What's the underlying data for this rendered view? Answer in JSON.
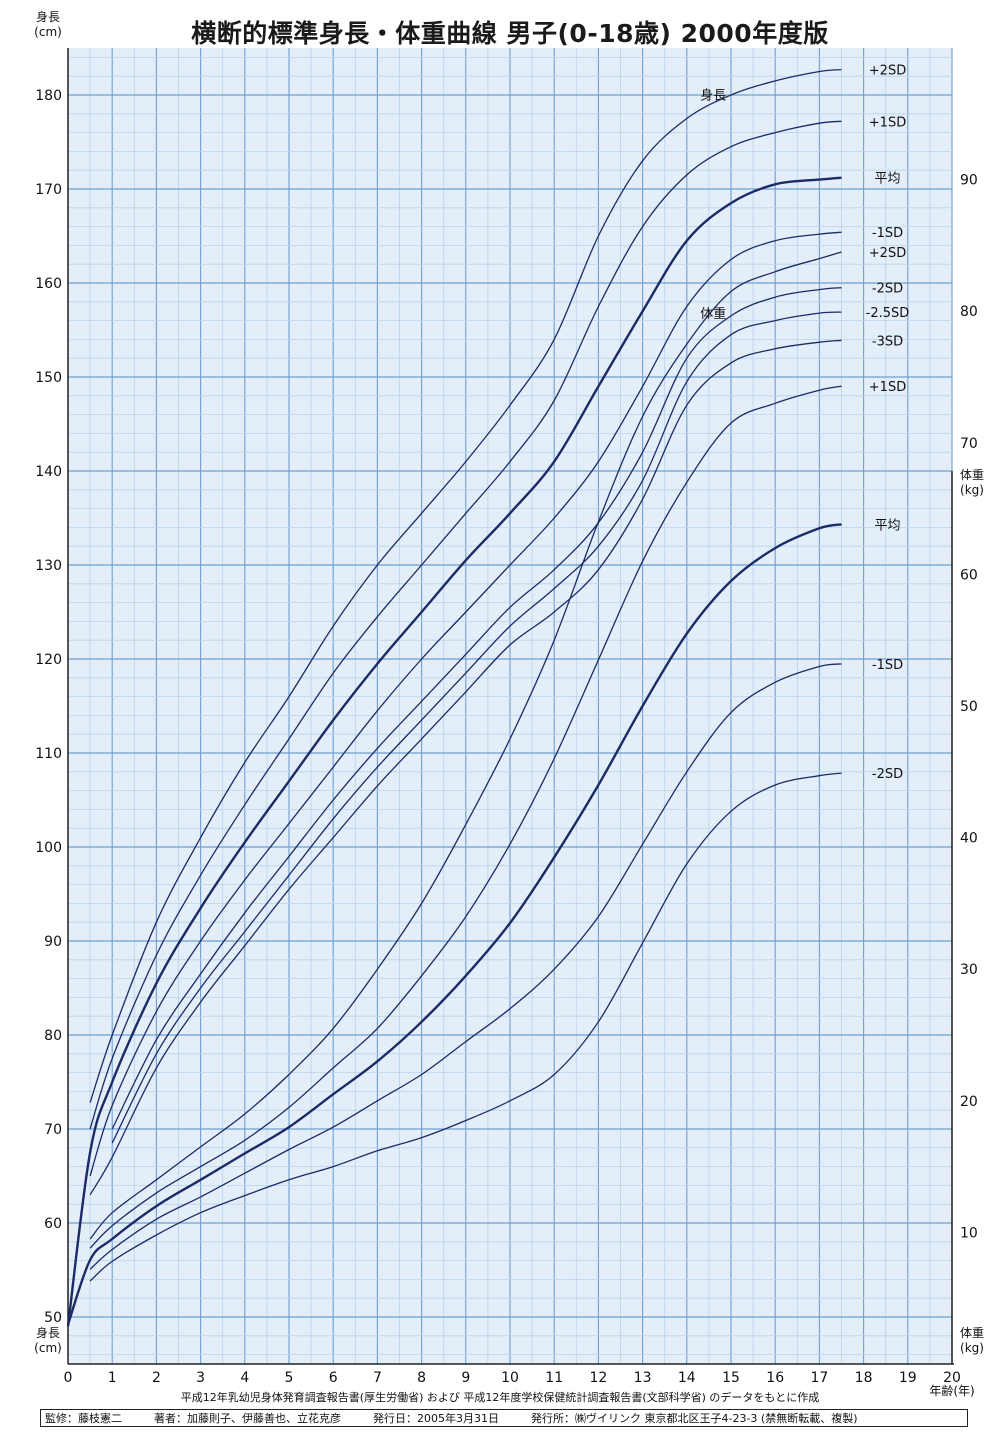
{
  "title": "横断的標準身長・体重曲線 男子(0-18歳) 2000年度版",
  "axes": {
    "y_left_label_top": [
      "身長",
      "(cm)"
    ],
    "y_left_label_bottom": [
      "身長",
      "(cm)"
    ],
    "y_right_label_top": [
      "体重",
      "(kg)"
    ],
    "y_right_label_bottom": [
      "体重",
      "(kg)"
    ],
    "x_label": "年齢(年)"
  },
  "footer": {
    "source": "平成12年乳幼児身体発育調査報告書(厚生労働省) および 平成12年度学校保健統計調査報告書(文部科学省) のデータをもとに作成",
    "credits": [
      "監修：藤枝憲二",
      "著者：加藤則子、伊藤善也、立花克彦",
      "発行日：2005年3月31日",
      "発行所：㈱ヴイリンク 東京都北区王子4-23-3 (禁無断転載、複製)"
    ]
  },
  "chart_data": {
    "type": "line",
    "title": "横断的標準身長・体重曲線 男子(0-18歳) 2000年度版",
    "xlabel": "年齢(年)",
    "ylabel": "身長 (cm)",
    "ylabel_right": "体重 (kg)",
    "xlim": [
      0,
      20
    ],
    "ylim_height": [
      45,
      185
    ],
    "ylim_weight": [
      0,
      100
    ],
    "x_ticks": [
      0,
      1,
      2,
      3,
      4,
      5,
      6,
      7,
      8,
      9,
      10,
      11,
      12,
      13,
      14,
      15,
      16,
      17,
      18,
      19,
      20
    ],
    "height_ticks": [
      50,
      60,
      70,
      80,
      90,
      100,
      110,
      120,
      130,
      140,
      150,
      160,
      170,
      180
    ],
    "weight_ticks": [
      10,
      20,
      30,
      40,
      50,
      60,
      70,
      80,
      90
    ],
    "grid": true,
    "height_group_label": "身長",
    "weight_group_label": "体重",
    "colors": {
      "grid_major": "#6f9fd0",
      "grid_minor": "#b9d3ec",
      "curve": "#1c2a66",
      "axis": "#222222"
    },
    "height_series": [
      {
        "name": "+2SD",
        "x": [
          0.5,
          1,
          2,
          3,
          4,
          5,
          6,
          7,
          8,
          9,
          10,
          11,
          12,
          13,
          14,
          15,
          16,
          17,
          17.5
        ],
        "values": [
          72.8,
          80,
          92,
          101,
          109,
          116,
          123.5,
          130,
          135.5,
          141,
          147,
          154,
          165,
          173,
          177.5,
          180,
          181.5,
          182.5,
          182.7
        ]
      },
      {
        "name": "+1SD",
        "x": [
          0.5,
          1,
          2,
          3,
          4,
          5,
          6,
          7,
          8,
          9,
          10,
          11,
          12,
          13,
          14,
          15,
          16,
          17,
          17.5
        ],
        "values": [
          70,
          77.5,
          88.5,
          97,
          104.5,
          111.5,
          118.5,
          124.5,
          130,
          135.5,
          141,
          147.5,
          157.5,
          166,
          171.5,
          174.5,
          176,
          177,
          177.2
        ]
      },
      {
        "name": "平均",
        "x": [
          0,
          0.5,
          1,
          2,
          3,
          4,
          5,
          6,
          7,
          8,
          9,
          10,
          11,
          12,
          13,
          14,
          15,
          16,
          17,
          17.5
        ],
        "values": [
          49,
          67.5,
          75,
          85.5,
          93.5,
          100.5,
          107,
          113.5,
          119.5,
          125,
          130.5,
          135.5,
          141,
          149,
          157,
          164.5,
          168.5,
          170.5,
          171,
          171.2
        ]
      },
      {
        "name": "-1SD",
        "x": [
          0.5,
          1,
          2,
          3,
          4,
          5,
          6,
          7,
          8,
          9,
          10,
          11,
          12,
          13,
          14,
          15,
          16,
          17,
          17.5
        ],
        "values": [
          65,
          72.5,
          82.5,
          90,
          96.5,
          102.5,
          108.5,
          114.5,
          120,
          125,
          130,
          135,
          141,
          149,
          157.5,
          162.5,
          164.5,
          165.2,
          165.4
        ]
      },
      {
        "name": "-2SD",
        "x": [
          1,
          2,
          3,
          4,
          5,
          6,
          7,
          8,
          9,
          10,
          11,
          12,
          13,
          14,
          15,
          16,
          17,
          17.5
        ],
        "values": [
          70,
          79.5,
          86.5,
          93,
          99,
          105,
          110.5,
          115.5,
          120.5,
          125.5,
          129.5,
          134.5,
          142,
          152,
          156.5,
          158.5,
          159.3,
          159.5
        ]
      },
      {
        "name": "-2.5SD",
        "x": [
          1,
          2,
          3,
          4,
          5,
          6,
          7,
          8,
          9,
          10,
          11,
          12,
          13,
          14,
          15,
          16,
          17,
          17.5
        ],
        "values": [
          68.5,
          78,
          85,
          91,
          97,
          103,
          108.5,
          113.5,
          118.5,
          123.5,
          127.5,
          132,
          139,
          149.5,
          154.5,
          156,
          156.8,
          156.9
        ]
      },
      {
        "name": "-3SD",
        "x": [
          0.5,
          1,
          2,
          3,
          4,
          5,
          6,
          7,
          8,
          9,
          10,
          11,
          12,
          13,
          14,
          15,
          16,
          17,
          17.5
        ],
        "values": [
          63,
          67,
          76.5,
          83.5,
          89.5,
          95.5,
          101,
          106.5,
          111.5,
          116.5,
          121.5,
          125,
          129.5,
          137,
          147,
          151.5,
          153,
          153.7,
          153.9
        ]
      }
    ],
    "weight_series": [
      {
        "name": "+2SD",
        "x": [
          0.5,
          1,
          2,
          3,
          4,
          5,
          6,
          7,
          8,
          9,
          10,
          11,
          12,
          13,
          14,
          15,
          16,
          17,
          17.5
        ],
        "values": [
          9.5,
          11.5,
          14,
          16.5,
          19,
          22,
          25.5,
          30,
          35,
          41,
          47.5,
          55,
          64,
          72,
          77.5,
          81.5,
          83,
          84,
          84.5
        ]
      },
      {
        "name": "+1SD",
        "x": [
          0.5,
          1,
          2,
          3,
          4,
          5,
          6,
          7,
          8,
          9,
          10,
          11,
          12,
          13,
          14,
          15,
          16,
          17,
          17.5
        ],
        "values": [
          8.8,
          10.5,
          13,
          15,
          17,
          19.5,
          22.5,
          25.5,
          29.5,
          34,
          39.5,
          46,
          53.5,
          61,
          67,
          71.5,
          73,
          74,
          74.3
        ]
      },
      {
        "name": "平均",
        "x": [
          0,
          0.5,
          1,
          2,
          3,
          4,
          5,
          6,
          7,
          8,
          9,
          10,
          11,
          12,
          13,
          14,
          15,
          16,
          17,
          17.5
        ],
        "values": [
          3,
          7.9,
          9.5,
          12,
          14,
          16,
          18,
          20.5,
          23,
          26,
          29.5,
          33.5,
          38.5,
          44,
          50,
          55.5,
          59.5,
          62,
          63.5,
          63.8
        ]
      },
      {
        "name": "-1SD",
        "x": [
          0.5,
          1,
          2,
          3,
          4,
          5,
          6,
          7,
          8,
          9,
          10,
          11,
          12,
          13,
          14,
          15,
          16,
          17,
          17.5
        ],
        "values": [
          7.2,
          8.7,
          11,
          12.7,
          14.5,
          16.3,
          18,
          20,
          22,
          24.5,
          27,
          30,
          34,
          39.5,
          45,
          49.5,
          51.8,
          53,
          53.2
        ]
      },
      {
        "name": "-2SD",
        "x": [
          0.5,
          1,
          2,
          3,
          4,
          5,
          6,
          7,
          8,
          9,
          10,
          11,
          12,
          13,
          14,
          15,
          16,
          17,
          17.5
        ],
        "values": [
          6.3,
          7.8,
          9.8,
          11.5,
          12.8,
          14,
          15,
          16.2,
          17.2,
          18.5,
          20,
          22,
          26,
          32,
          38,
          42,
          44,
          44.7,
          44.9
        ]
      }
    ]
  }
}
